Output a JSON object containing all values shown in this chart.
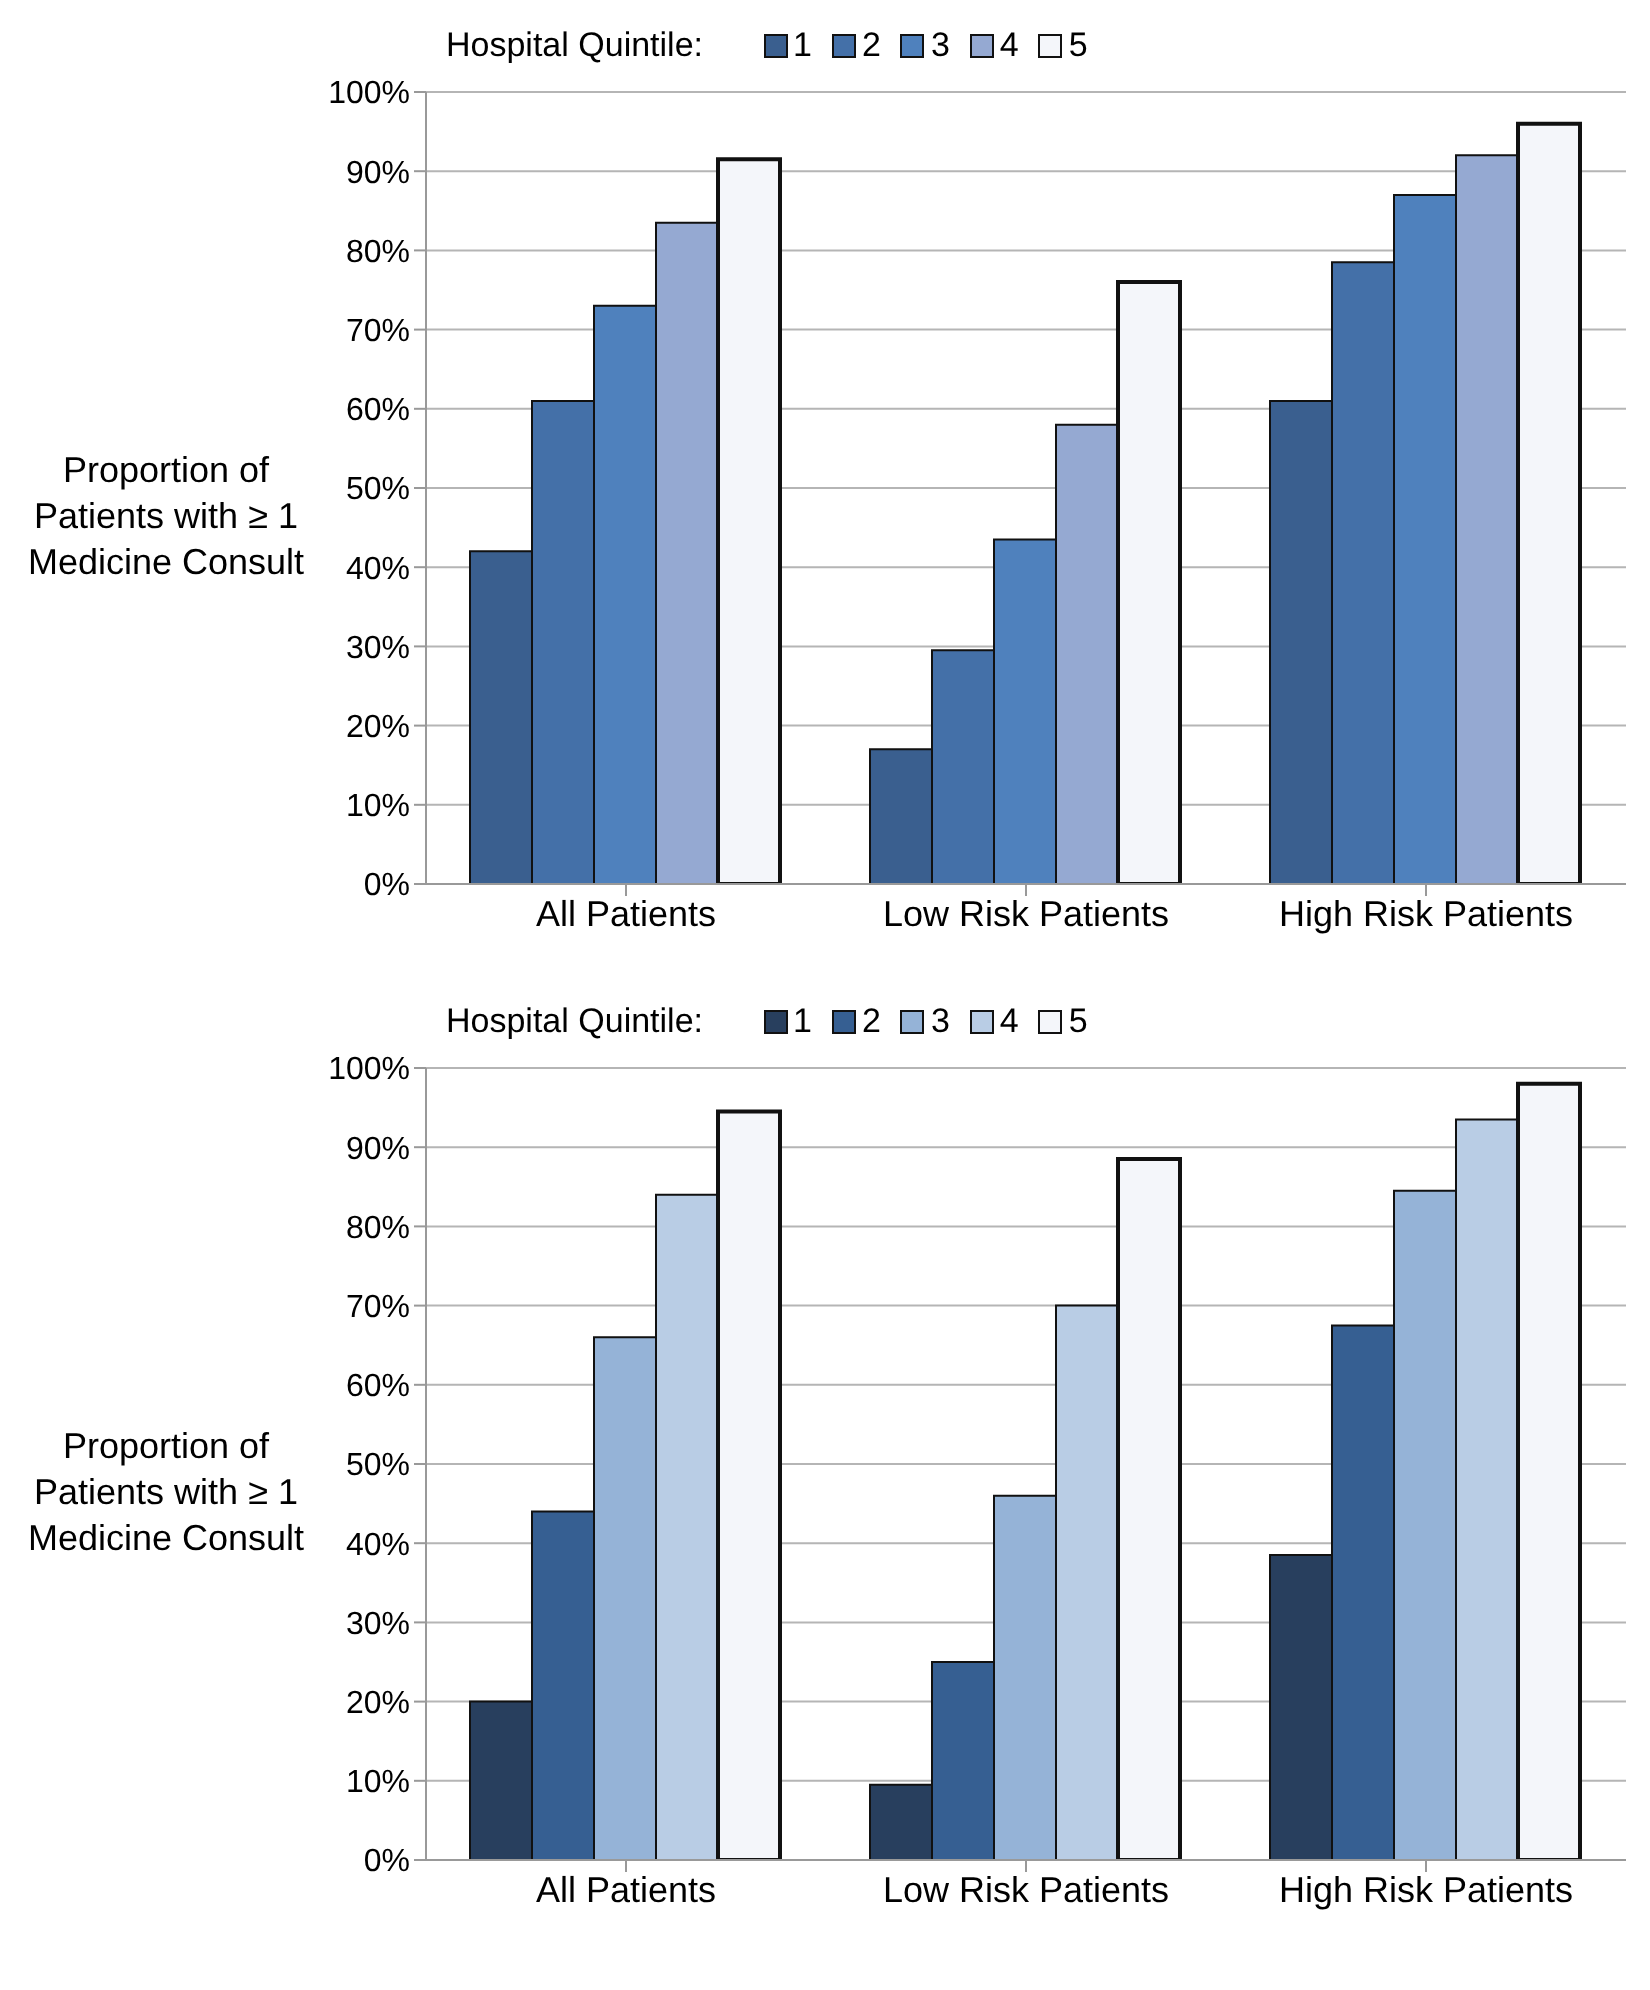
{
  "chart_data": [
    {
      "type": "bar",
      "ylabel": "Proportion of Patients with ≥ 1 Medicine Consult",
      "legend_title": "Hospital Quintile:",
      "legend": "top",
      "grid": "y",
      "categories": [
        "All Patients",
        "Low Risk Patients",
        "High Risk Patients"
      ],
      "ylim": [
        0,
        100
      ],
      "yticks": [
        {
          "value": 0,
          "label": "0%"
        },
        {
          "value": 10,
          "label": "10%"
        },
        {
          "value": 20,
          "label": "20%"
        },
        {
          "value": 30,
          "label": "30%"
        },
        {
          "value": 40,
          "label": "40%"
        },
        {
          "value": 50,
          "label": "50%"
        },
        {
          "value": 60,
          "label": "60%"
        },
        {
          "value": 70,
          "label": "70%"
        },
        {
          "value": 80,
          "label": "80%"
        },
        {
          "value": 90,
          "label": "90%"
        },
        {
          "value": 100,
          "label": "100%"
        }
      ],
      "series": [
        {
          "name": "1",
          "color": "#3a5f8f",
          "values": [
            42,
            17,
            61
          ]
        },
        {
          "name": "2",
          "color": "#4470a8",
          "values": [
            61,
            29.5,
            78.5
          ]
        },
        {
          "name": "3",
          "color": "#4f81bd",
          "values": [
            73,
            43.5,
            87
          ]
        },
        {
          "name": "4",
          "color": "#95a9d2",
          "values": [
            83.5,
            58,
            92
          ]
        },
        {
          "name": "5",
          "color": "#f4f6fa",
          "values": [
            91.5,
            76,
            96
          ]
        }
      ]
    },
    {
      "type": "bar",
      "ylabel": "Proportion of Patients with ≥ 1 Medicine Consult",
      "legend_title": "Hospital Quintile:",
      "legend": "top",
      "grid": "y",
      "categories": [
        "All Patients",
        "Low Risk Patients",
        "High Risk Patients"
      ],
      "ylim": [
        0,
        100
      ],
      "yticks": [
        {
          "value": 0,
          "label": "0%"
        },
        {
          "value": 10,
          "label": "10%"
        },
        {
          "value": 20,
          "label": "20%"
        },
        {
          "value": 30,
          "label": "30%"
        },
        {
          "value": 40,
          "label": "40%"
        },
        {
          "value": 50,
          "label": "50%"
        },
        {
          "value": 60,
          "label": "60%"
        },
        {
          "value": 70,
          "label": "70%"
        },
        {
          "value": 80,
          "label": "80%"
        },
        {
          "value": 90,
          "label": "90%"
        },
        {
          "value": 100,
          "label": "100%"
        }
      ],
      "series": [
        {
          "name": "1",
          "color": "#283f5e",
          "values": [
            20,
            9.5,
            38.5
          ]
        },
        {
          "name": "2",
          "color": "#365f92",
          "values": [
            44,
            25,
            67.5
          ]
        },
        {
          "name": "3",
          "color": "#95b3d7",
          "values": [
            66,
            46,
            84.5
          ]
        },
        {
          "name": "4",
          "color": "#b9cde5",
          "values": [
            84,
            70,
            93.5
          ]
        },
        {
          "name": "5",
          "color": "#f4f6fa",
          "values": [
            94.5,
            88.5,
            98
          ]
        }
      ]
    }
  ]
}
